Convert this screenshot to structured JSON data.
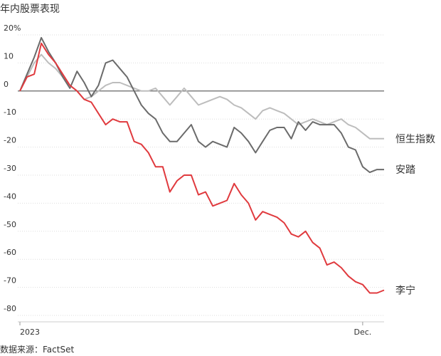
{
  "chart_data": {
    "type": "line",
    "title": "年内股票表现",
    "source": "数据来源：FactSet",
    "categories": [
      "2023",
      null,
      null,
      null,
      null,
      null,
      null,
      null,
      null,
      null,
      null,
      null,
      null,
      null,
      null,
      null,
      null,
      null,
      null,
      null,
      null,
      null,
      null,
      null,
      null,
      null,
      null,
      null,
      null,
      null,
      null,
      null,
      null,
      null,
      null,
      null,
      null,
      null,
      null,
      null,
      null,
      null,
      null,
      null,
      null,
      null,
      null,
      null,
      "Dec.",
      null,
      null,
      null
    ],
    "series": [
      {
        "name": "恒生指数",
        "color": "#bdbdbd",
        "values": [
          0,
          5,
          10,
          13,
          10,
          8,
          5,
          2,
          0,
          -3,
          -2,
          0,
          2,
          3,
          3,
          2,
          1,
          0,
          0,
          1,
          -2,
          -5,
          -2,
          1,
          -2,
          -5,
          -4,
          -3,
          -2,
          -3,
          -5,
          -6,
          -8,
          -10,
          -7,
          -6,
          -7,
          -8,
          -10,
          -12,
          -11,
          -10,
          -11,
          -12,
          -11,
          -10,
          -12,
          -13,
          -15,
          -17,
          -17,
          -17
        ]
      },
      {
        "name": "安踏",
        "color": "#6b6b6b",
        "values": [
          0,
          6,
          12,
          19,
          14,
          10,
          5,
          1,
          7,
          3,
          -2,
          2,
          10,
          11,
          8,
          5,
          0,
          -5,
          -8,
          -10,
          -15,
          -18,
          -18,
          -15,
          -12,
          -18,
          -20,
          -18,
          -19,
          -20,
          -13,
          -15,
          -18,
          -22,
          -18,
          -14,
          -13,
          -13,
          -17,
          -11,
          -14,
          -11,
          -12,
          -12,
          -12,
          -15,
          -20,
          -21,
          -27,
          -29,
          -28,
          -28
        ]
      },
      {
        "name": "李宁",
        "color": "#e03a3e",
        "values": [
          0,
          5,
          6,
          17,
          13,
          10,
          6,
          2,
          0,
          -3,
          -4,
          -8,
          -12,
          -10,
          -11,
          -11,
          -18,
          -19,
          -22,
          -27,
          -27,
          -36,
          -32,
          -30,
          -30,
          -37,
          -36,
          -41,
          -40,
          -39,
          -33,
          -37,
          -40,
          -46,
          -43,
          -44,
          -45,
          -47,
          -51,
          -52,
          -50,
          -54,
          -56,
          -62,
          -61,
          -63,
          -66,
          -68,
          -69,
          -72,
          -72,
          -71
        ]
      }
    ],
    "ylim": [
      20,
      -80
    ],
    "yticks": [
      {
        "value": 20,
        "label": "20%"
      },
      10,
      0,
      -10,
      -20,
      -30,
      -40,
      -50,
      -60,
      -70,
      -80
    ],
    "grid": true
  }
}
